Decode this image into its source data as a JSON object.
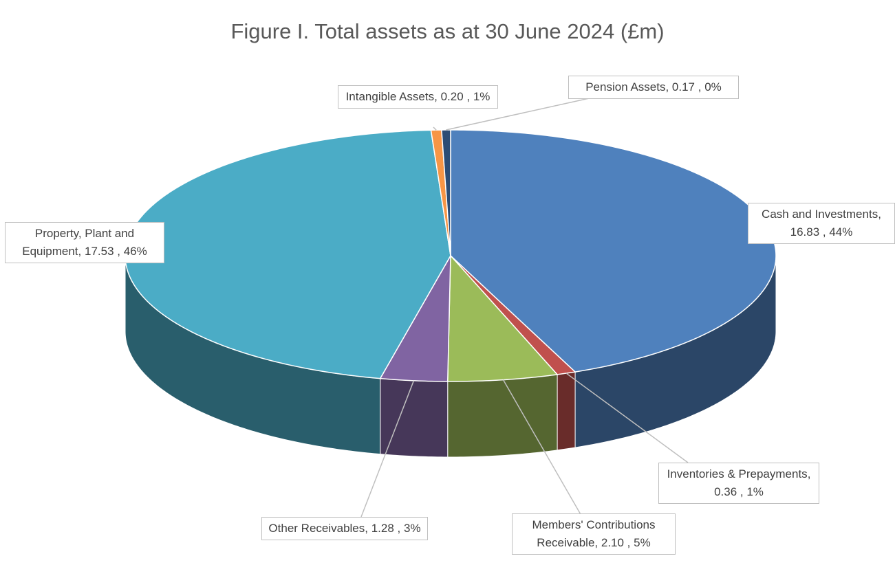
{
  "chart_data": {
    "type": "pie3d",
    "title": "Figure I. Total assets as at 30 June 2024 (£m)",
    "categories": [
      "Cash and Investments",
      "Inventories & Prepayments",
      "Members' Contributions Receivable",
      "Other Receivables",
      "Property, Plant and Equipment",
      "Intangible Assets",
      "Pension Assets"
    ],
    "values": [
      16.83,
      0.36,
      2.1,
      1.28,
      17.53,
      0.2,
      0.17
    ],
    "value_labels": [
      "16.83",
      "0.36",
      "2.10",
      "1.28",
      "17.53",
      "0.20",
      "0.17"
    ],
    "percent_labels": [
      "44%",
      "1%",
      "5%",
      "3%",
      "46%",
      "1%",
      "0%"
    ],
    "colors": [
      "#4f81bd",
      "#c0504d",
      "#9bbb59",
      "#8064a2",
      "#4bacc6",
      "#f79646",
      "#2c4d75"
    ]
  }
}
